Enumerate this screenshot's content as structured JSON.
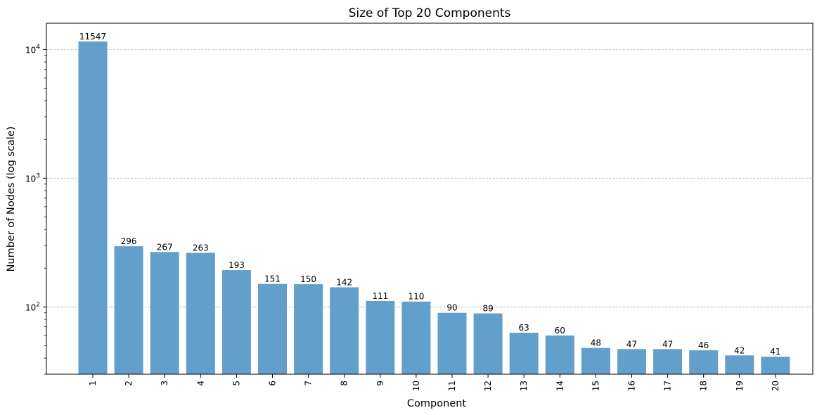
{
  "chart_data": {
    "type": "bar",
    "title": "Size of Top 20 Components",
    "xlabel": "Component",
    "ylabel": "Number of Nodes (log scale)",
    "yscale": "log",
    "ylim": [
      30,
      16000
    ],
    "grid": "y-major dashed",
    "bar_color": "#629fca",
    "categories": [
      "1",
      "2",
      "3",
      "4",
      "5",
      "6",
      "7",
      "8",
      "9",
      "10",
      "11",
      "12",
      "13",
      "14",
      "15",
      "16",
      "17",
      "18",
      "19",
      "20"
    ],
    "values": [
      11547,
      296,
      267,
      263,
      193,
      151,
      150,
      142,
      111,
      110,
      90,
      89,
      63,
      60,
      48,
      47,
      47,
      46,
      42,
      41
    ],
    "y_ticks": [
      {
        "value": 100,
        "base": "10",
        "exp": "2"
      },
      {
        "value": 1000,
        "base": "10",
        "exp": "3"
      },
      {
        "value": 10000,
        "base": "10",
        "exp": "4"
      }
    ]
  }
}
